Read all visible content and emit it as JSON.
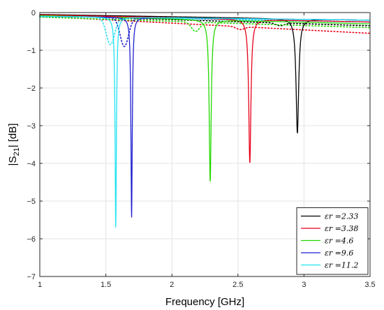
{
  "chart_data": {
    "type": "line",
    "xlabel": "Frequency [GHz]",
    "ylabel_main": "|S",
    "ylabel_sub": "21",
    "ylabel_tail": "| [dB]",
    "xlim": [
      1,
      3.5
    ],
    "ylim": [
      -7,
      0
    ],
    "xticks": [
      1,
      1.5,
      2,
      2.5,
      3,
      3.5
    ],
    "xtick_labels": [
      "1",
      "1.5",
      "2",
      "2.5",
      "3",
      "3.5"
    ],
    "yticks": [
      0,
      -1,
      -2,
      -3,
      -4,
      -5,
      -6,
      -7
    ],
    "ytick_labels": [
      "0",
      "−1",
      "−2",
      "−3",
      "−4",
      "−5",
      "−6",
      "−7"
    ],
    "grid": true,
    "legend_position": "bottom-right",
    "series": [
      {
        "name": "εr =2.33",
        "color": "#000000",
        "base_start": -0.05,
        "base_end": -0.2,
        "f0": 2.95,
        "depth": -3.2,
        "width": 0.012,
        "dotted_start": -0.08,
        "dotted_end": -0.35,
        "dotted_dip_f": 2.82,
        "dotted_dip_depth": -0.35
      },
      {
        "name": "εr =3.38",
        "color": "#e8001b",
        "base_start": -0.06,
        "base_end": -0.25,
        "f0": 2.59,
        "depth": -4.0,
        "width": 0.01,
        "dotted_start": -0.1,
        "dotted_end": -0.55,
        "dotted_dip_f": 2.52,
        "dotted_dip_depth": -0.45
      },
      {
        "name": "εr =4.6",
        "color": "#23d800",
        "base_start": -0.08,
        "base_end": -0.3,
        "f0": 2.29,
        "depth": -4.5,
        "width": 0.009,
        "dotted_start": -0.12,
        "dotted_end": -0.4,
        "dotted_dip_f": 2.18,
        "dotted_dip_depth": -0.5
      },
      {
        "name": "εr =9.6",
        "color": "#1f1fd2",
        "base_start": -0.1,
        "base_end": -0.2,
        "f0": 1.695,
        "depth": -5.45,
        "width": 0.006,
        "dotted_start": -0.1,
        "dotted_end": -0.25,
        "dotted_dip_f": 1.64,
        "dotted_dip_depth": -0.9
      },
      {
        "name": "εr =11.2",
        "color": "#21e2f2",
        "base_start": -0.1,
        "base_end": -0.2,
        "f0": 1.575,
        "depth": -5.7,
        "width": 0.006,
        "dotted_start": -0.1,
        "dotted_end": -0.25,
        "dotted_dip_f": 1.535,
        "dotted_dip_depth": -0.85
      }
    ]
  }
}
